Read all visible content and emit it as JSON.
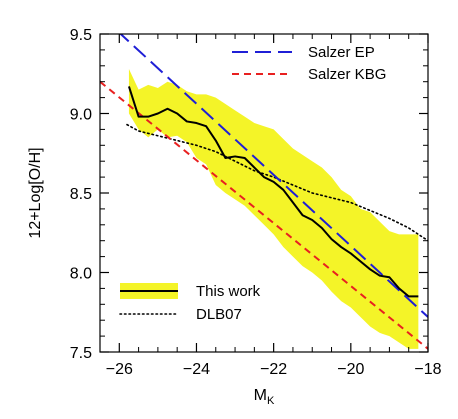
{
  "chart_data": {
    "type": "line",
    "xlabel": "M",
    "xlabel_sub": "K",
    "ylabel": "12+Log[O/H]",
    "xlim": [
      -26.5,
      -18
    ],
    "ylim": [
      7.5,
      9.5
    ],
    "x_ticks": [
      -26,
      -24,
      -22,
      -20,
      -18
    ],
    "x_tick_labels": [
      "−26",
      "−24",
      "−22",
      "−20",
      "−18"
    ],
    "y_ticks": [
      7.5,
      8.0,
      8.5,
      9.0,
      9.5
    ],
    "y_tick_labels": [
      "7.5",
      "8.0",
      "8.5",
      "9.0",
      "9.5"
    ],
    "grid": false,
    "legend_top": [
      {
        "label": "Salzer EP",
        "color": "#1f1fd6",
        "style": "long-dash"
      },
      {
        "label": "Salzer KBG",
        "color": "#e82020",
        "style": "short-dash"
      }
    ],
    "legend_bottom": [
      {
        "label": "This work",
        "color": "#000000",
        "band_color": "#f4f428",
        "style": "solid-band"
      },
      {
        "label": "DLB07",
        "color": "#000000",
        "style": "dotted"
      }
    ],
    "series": [
      {
        "name": "Salzer EP",
        "color": "#1f1fd6",
        "style": "long-dash",
        "x": [
          -26.5,
          -18
        ],
        "y": [
          9.62,
          7.72
        ]
      },
      {
        "name": "Salzer KBG",
        "color": "#e82020",
        "style": "short-dash",
        "x": [
          -26.5,
          -18
        ],
        "y": [
          9.2,
          7.52
        ]
      },
      {
        "name": "This work",
        "color": "#000000",
        "style": "solid",
        "x": [
          -25.75,
          -25.5,
          -25.25,
          -25.0,
          -24.75,
          -24.5,
          -24.25,
          -24.0,
          -23.75,
          -23.5,
          -23.25,
          -23.0,
          -22.75,
          -22.5,
          -22.25,
          -22.0,
          -21.75,
          -21.5,
          -21.25,
          -21.0,
          -20.75,
          -20.5,
          -20.25,
          -20.0,
          -19.75,
          -19.5,
          -19.25,
          -19.0,
          -18.75,
          -18.5,
          -18.25
        ],
        "y": [
          9.17,
          8.98,
          8.98,
          9.0,
          9.03,
          9.0,
          8.95,
          8.94,
          8.92,
          8.83,
          8.72,
          8.73,
          8.72,
          8.66,
          8.6,
          8.57,
          8.52,
          8.44,
          8.36,
          8.33,
          8.28,
          8.21,
          8.16,
          8.12,
          8.07,
          8.02,
          7.98,
          7.97,
          7.9,
          7.85,
          7.85
        ]
      },
      {
        "name": "This work (scatter band)",
        "color": "#f4f428",
        "style": "band",
        "x": [
          -25.75,
          -25.5,
          -25.25,
          -25.0,
          -24.75,
          -24.5,
          -24.25,
          -24.0,
          -23.75,
          -23.5,
          -23.25,
          -23.0,
          -22.75,
          -22.5,
          -22.25,
          -22.0,
          -21.75,
          -21.5,
          -21.25,
          -21.0,
          -20.75,
          -20.5,
          -20.25,
          -20.0,
          -19.75,
          -19.5,
          -19.25,
          -19.0,
          -18.75,
          -18.5,
          -18.25
        ],
        "upper": [
          9.28,
          9.15,
          9.18,
          9.16,
          9.2,
          9.18,
          9.14,
          9.12,
          9.12,
          9.1,
          9.06,
          9.02,
          8.98,
          8.94,
          8.92,
          8.9,
          8.84,
          8.78,
          8.74,
          8.7,
          8.66,
          8.6,
          8.52,
          8.48,
          8.4,
          8.38,
          8.32,
          8.26,
          8.24,
          8.24,
          8.24
        ],
        "lower": [
          9.0,
          8.9,
          8.85,
          8.9,
          8.85,
          8.86,
          8.82,
          8.72,
          8.68,
          8.55,
          8.5,
          8.46,
          8.42,
          8.36,
          8.3,
          8.24,
          8.16,
          8.1,
          8.04,
          8.0,
          7.95,
          7.88,
          7.82,
          7.78,
          7.72,
          7.66,
          7.62,
          7.6,
          7.56,
          7.52,
          7.52
        ]
      },
      {
        "name": "DLB07",
        "color": "#000000",
        "style": "dotted",
        "x": [
          -25.8,
          -25.5,
          -25.0,
          -24.5,
          -24.0,
          -23.5,
          -23.0,
          -22.5,
          -22.0,
          -21.5,
          -21.0,
          -20.5,
          -20.0,
          -19.5,
          -19.0,
          -18.5,
          -18.0
        ],
        "y": [
          8.93,
          8.89,
          8.86,
          8.83,
          8.8,
          8.76,
          8.7,
          8.64,
          8.6,
          8.55,
          8.5,
          8.47,
          8.44,
          8.39,
          8.34,
          8.28,
          8.2
        ]
      }
    ]
  }
}
